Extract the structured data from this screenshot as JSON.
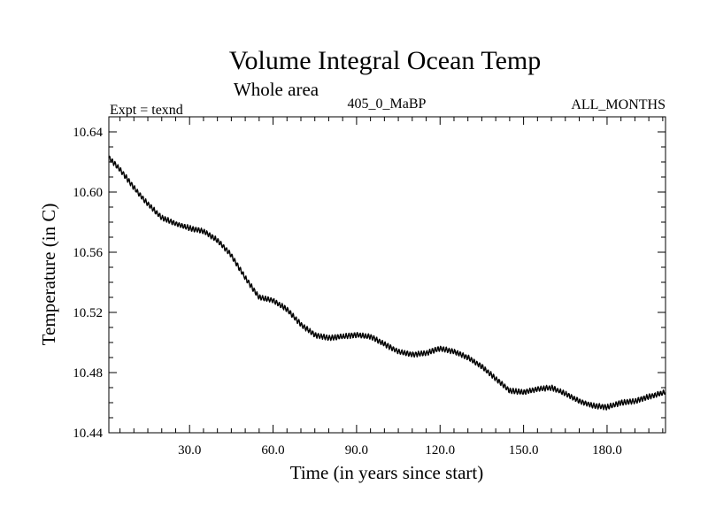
{
  "chart_data": {
    "type": "line",
    "title": "Volume Integral Ocean Temp",
    "subtitle": "Whole area",
    "annotations": {
      "experiment": "Expt = texnd",
      "run": "405_0_MaBP",
      "period": "ALL_MONTHS"
    },
    "xlabel": "Time (in years since start)",
    "ylabel": "Temperature (in C)",
    "xlim": [
      1,
      201
    ],
    "ylim": [
      10.44,
      10.65
    ],
    "xticks": [
      30,
      60,
      90,
      120,
      150,
      180
    ],
    "xtick_labels": [
      "30.0",
      "60.0",
      "90.0",
      "120.0",
      "150.0",
      "180.0"
    ],
    "yticks": [
      10.44,
      10.48,
      10.52,
      10.56,
      10.6,
      10.64
    ],
    "ytick_labels": [
      "10.44",
      "10.48",
      "10.52",
      "10.56",
      "10.60",
      "10.64"
    ],
    "seasonal_amplitude": 0.0015,
    "series": [
      {
        "name": "Volume integral ocean temperature",
        "x": [
          1,
          5,
          10,
          15,
          20,
          25,
          30,
          35,
          40,
          45,
          50,
          55,
          60,
          65,
          70,
          75,
          80,
          85,
          90,
          95,
          100,
          105,
          110,
          115,
          120,
          125,
          130,
          135,
          140,
          145,
          150,
          155,
          160,
          165,
          170,
          175,
          180,
          185,
          190,
          195,
          201
        ],
        "y": [
          10.623,
          10.615,
          10.603,
          10.592,
          10.583,
          10.579,
          10.576,
          10.574,
          10.568,
          10.558,
          10.543,
          10.53,
          10.528,
          10.522,
          10.512,
          10.505,
          10.503,
          10.504,
          10.505,
          10.504,
          10.499,
          10.494,
          10.492,
          10.493,
          10.496,
          10.494,
          10.49,
          10.484,
          10.476,
          10.468,
          10.467,
          10.469,
          10.47,
          10.466,
          10.461,
          10.458,
          10.457,
          10.46,
          10.461,
          10.464,
          10.467
        ]
      }
    ]
  }
}
